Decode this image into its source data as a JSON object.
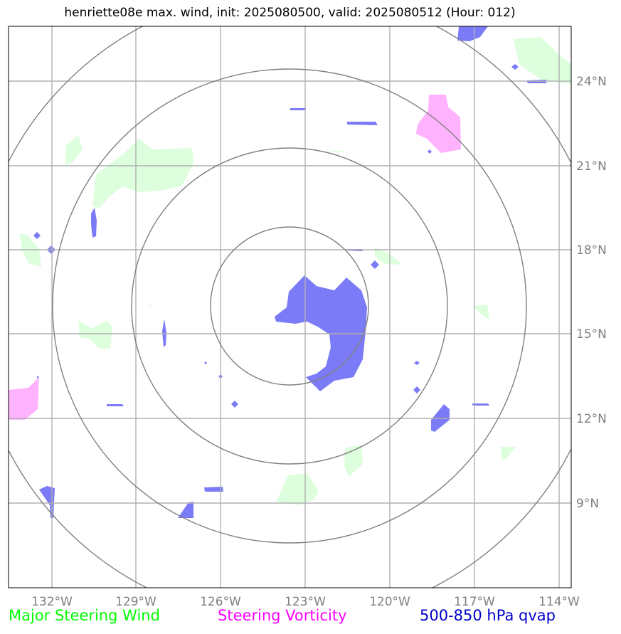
{
  "title": "henriette08e max. wind, init: 2025080500, valid: 2025080512 (Hour: 012)",
  "axes": {
    "lon_ticks": [
      "132°W",
      "129°W",
      "126°W",
      "123°W",
      "120°W",
      "117°W",
      "114°W"
    ],
    "lat_ticks": [
      "24°N",
      "21°N",
      "18°N",
      "15°N",
      "12°N",
      "9°N"
    ]
  },
  "legend": [
    {
      "label": "Major Steering Wind",
      "color": "#00ff00"
    },
    {
      "label": "Steering Vorticity",
      "color": "#ff00ff"
    },
    {
      "label": "500-850 hPa qvap",
      "color": "#0000cc"
    }
  ],
  "colors": {
    "wind_fill": "#ddffdd",
    "vorticity_fill": "#ffb3ff",
    "qvap_fill": "#7b7bf7",
    "grid": "#b0b0b0",
    "range_rings": "#808080"
  }
}
